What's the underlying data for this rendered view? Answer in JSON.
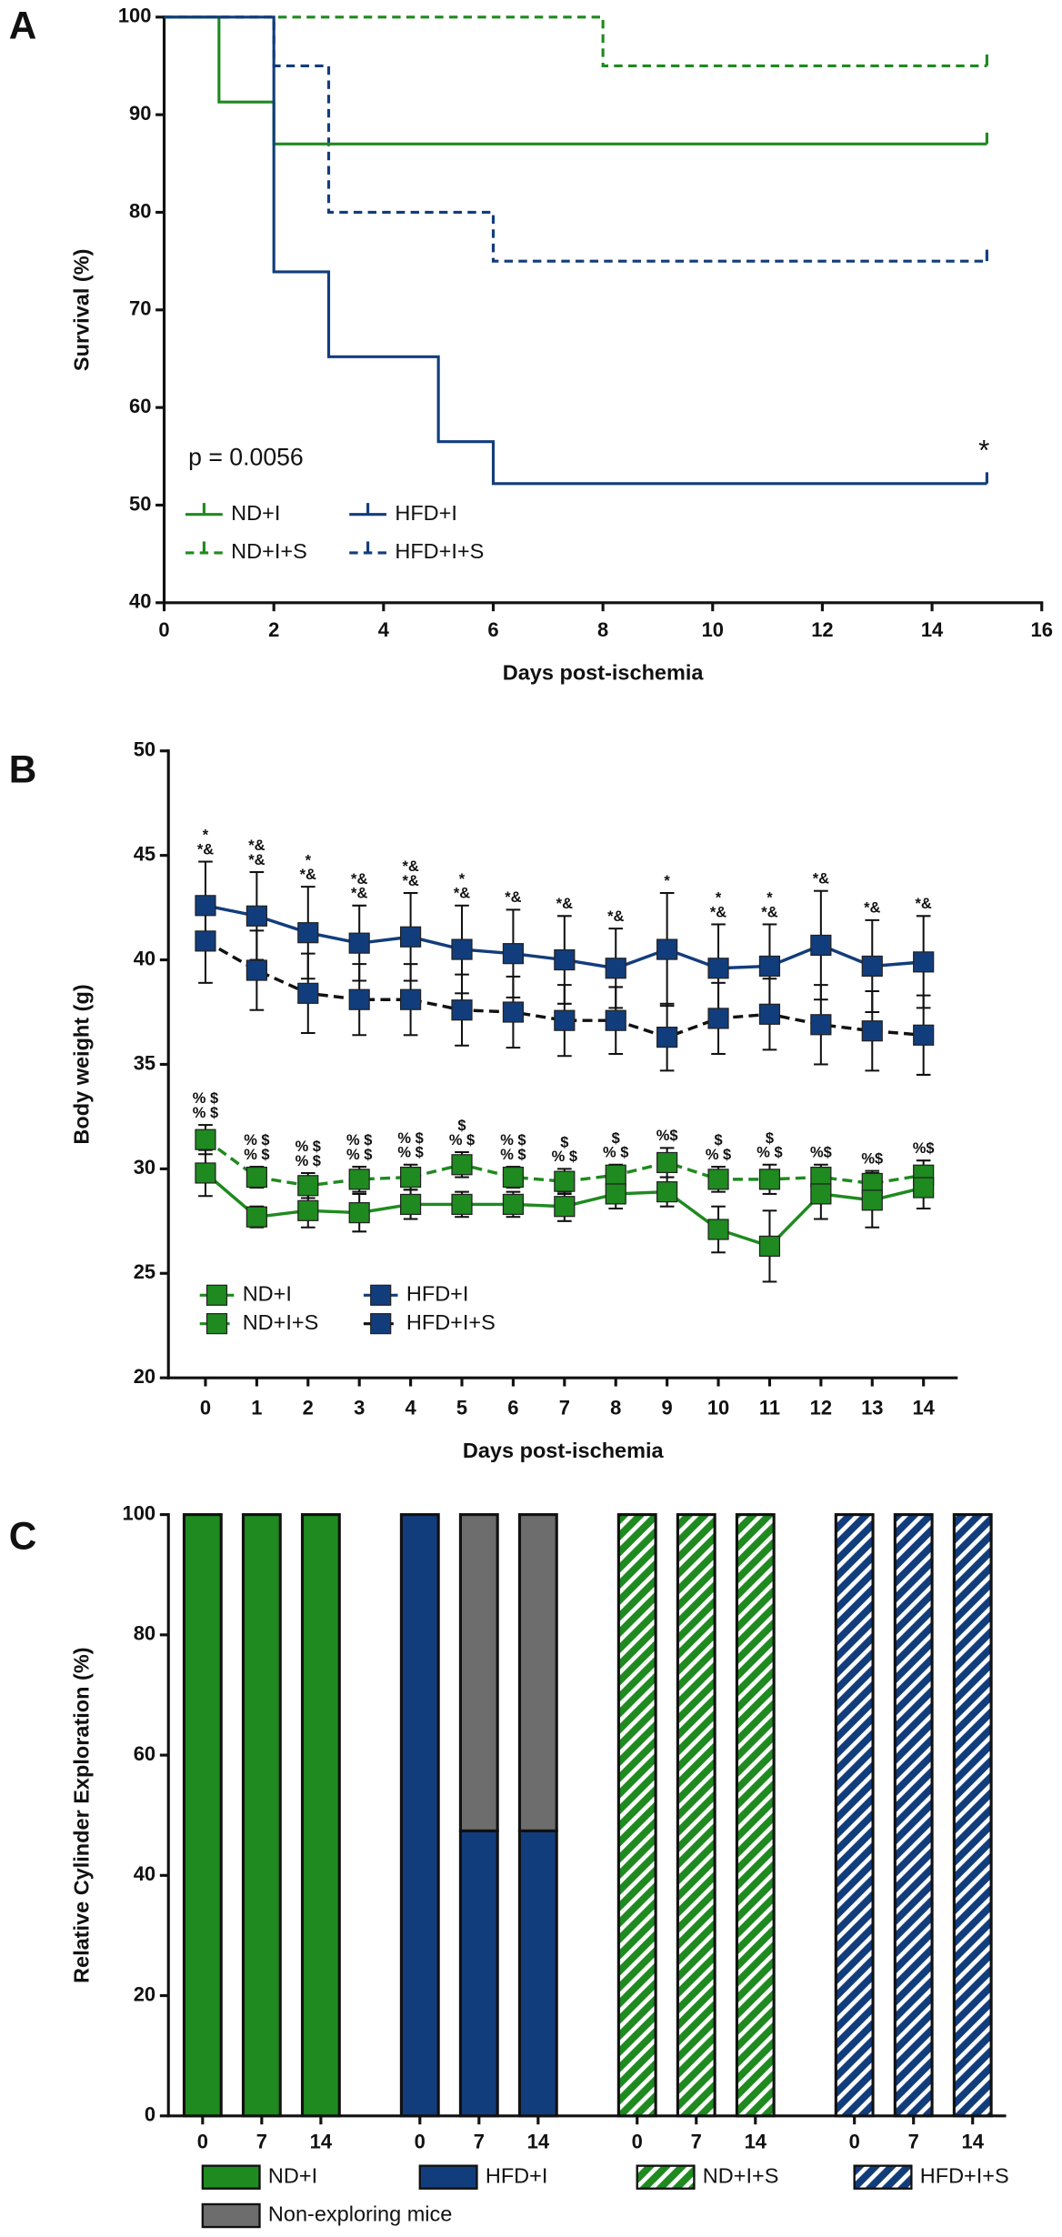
{
  "chart_data": [
    {
      "type": "step",
      "panel_label": "A",
      "ylabel": "Survival (%)",
      "xlabel": "Days post-ischemia",
      "xlim": [
        0,
        16
      ],
      "xticks": [
        0,
        2,
        4,
        6,
        8,
        10,
        12,
        14,
        16
      ],
      "ylim": [
        40,
        100
      ],
      "yticks": [
        40,
        50,
        60,
        70,
        80,
        90,
        100
      ],
      "p_value_text": "p = 0.0056",
      "series": [
        {
          "name": "ND+I",
          "color": "#1f8a1f",
          "dashed": false,
          "x": [
            0,
            1,
            2,
            15
          ],
          "values": [
            100,
            91.3,
            87,
            87
          ]
        },
        {
          "name": "HFD+I",
          "color": "#123d7c",
          "dashed": false,
          "x": [
            0,
            2,
            3,
            5,
            6,
            15
          ],
          "values": [
            100,
            73.9,
            65.2,
            56.5,
            52.2,
            52.2
          ],
          "annotation": "*"
        },
        {
          "name": "ND+I+S",
          "color": "#1f8a1f",
          "dashed": true,
          "x": [
            0,
            8,
            15
          ],
          "values": [
            100,
            95,
            95
          ]
        },
        {
          "name": "HFD+I+S",
          "color": "#123d7c",
          "dashed": true,
          "x": [
            0,
            2,
            3,
            6,
            15
          ],
          "values": [
            100,
            95,
            80,
            75,
            75
          ]
        }
      ]
    },
    {
      "type": "line",
      "panel_label": "B",
      "ylabel": "Body weight (g)",
      "xlabel": "Days post-ischemia",
      "categories": [
        "0",
        "1",
        "2",
        "3",
        "4",
        "5",
        "6",
        "7",
        "8",
        "9",
        "10",
        "11",
        "12",
        "13",
        "14"
      ],
      "ylim": [
        20,
        50
      ],
      "yticks": [
        20,
        25,
        30,
        35,
        40,
        45,
        50
      ],
      "series": [
        {
          "name": "ND+I",
          "color": "#1f8a1f",
          "line_color": "#1f8a1f",
          "dashed": false,
          "values": [
            29.8,
            27.7,
            28.0,
            27.9,
            28.3,
            28.3,
            28.3,
            28.2,
            28.8,
            28.9,
            27.1,
            26.3,
            28.8,
            28.5,
            29.1
          ],
          "errors": [
            1.1,
            0.5,
            0.8,
            0.9,
            0.7,
            0.6,
            0.6,
            0.7,
            0.7,
            0.7,
            1.1,
            1.7,
            1.2,
            1.3,
            1.0
          ]
        },
        {
          "name": "HFD+I",
          "color": "#123d7c",
          "line_color": "#123d7c",
          "dashed": false,
          "values": [
            42.6,
            42.1,
            41.3,
            40.8,
            41.1,
            40.5,
            40.3,
            40.0,
            39.6,
            40.5,
            39.6,
            39.7,
            40.7,
            39.7,
            39.9
          ],
          "errors": [
            2.1,
            2.1,
            2.2,
            1.8,
            2.1,
            2.1,
            2.1,
            2.1,
            1.9,
            2.7,
            2.1,
            2.0,
            2.6,
            2.2,
            2.2
          ],
          "significance": [
            [
              "*",
              "*&"
            ],
            [
              "*&",
              "*&"
            ],
            [
              "*",
              "*&"
            ],
            [
              "*&",
              "*&"
            ],
            [
              "*&",
              "*&"
            ],
            [
              "*",
              "*&"
            ],
            [
              "*&"
            ],
            [
              "*&"
            ],
            [
              "*&"
            ],
            [
              "*"
            ],
            [
              "*",
              "*&"
            ],
            [
              "*",
              "*&"
            ],
            [
              "*&"
            ],
            [
              "*&"
            ],
            [
              "*&"
            ]
          ]
        },
        {
          "name": "ND+I+S",
          "color": "#1f8a1f",
          "line_color": "#1f8a1f",
          "dashed": true,
          "values": [
            31.4,
            29.6,
            29.2,
            29.5,
            29.6,
            30.2,
            29.6,
            29.4,
            29.7,
            30.3,
            29.5,
            29.5,
            29.6,
            29.3,
            29.7
          ],
          "errors": [
            0.7,
            0.5,
            0.6,
            0.6,
            0.6,
            0.6,
            0.5,
            0.6,
            0.5,
            0.7,
            0.6,
            0.7,
            0.6,
            0.6,
            0.7
          ],
          "significance": [
            [
              "% $",
              "% $"
            ],
            [
              "% $",
              "% $"
            ],
            [
              "% $",
              "% $"
            ],
            [
              "% $",
              "% $"
            ],
            [
              "% $",
              "% $"
            ],
            [
              "$",
              "% $"
            ],
            [
              "% $",
              "% $"
            ],
            [
              "$",
              "% $"
            ],
            [
              "$",
              "% $"
            ],
            [
              "%$"
            ],
            [
              "$",
              "% $"
            ],
            [
              "$",
              "% $"
            ],
            [
              "%$"
            ],
            [
              "%$"
            ],
            [
              "%$"
            ]
          ]
        },
        {
          "name": "HFD+I+S",
          "color": "#123d7c",
          "line_color": "#111111",
          "dashed": true,
          "values": [
            40.9,
            39.5,
            38.4,
            38.1,
            38.1,
            37.6,
            37.5,
            37.1,
            37.1,
            36.3,
            37.2,
            37.4,
            36.9,
            36.6,
            36.4
          ],
          "errors": [
            2.0,
            1.9,
            1.9,
            1.7,
            1.7,
            1.7,
            1.7,
            1.7,
            1.6,
            1.6,
            1.7,
            1.7,
            1.9,
            1.9,
            1.9
          ]
        }
      ]
    },
    {
      "type": "stacked_bar",
      "panel_label": "C",
      "ylabel": "Relative Cylinder Exploration (%)",
      "categories": [
        "0",
        "7",
        "14"
      ],
      "ylim": [
        0,
        100
      ],
      "yticks": [
        0,
        20,
        40,
        60,
        80,
        100
      ],
      "groups": [
        {
          "name": "ND+I",
          "color": "#1f8a1f",
          "hatched": false,
          "values": [
            100,
            100,
            100
          ],
          "non_exploring": [
            0,
            0,
            0
          ]
        },
        {
          "name": "HFD+I",
          "color": "#123d7c",
          "hatched": false,
          "values": [
            100,
            47.4,
            47.4
          ],
          "non_exploring": [
            0,
            52.6,
            52.6
          ]
        },
        {
          "name": "ND+I+S",
          "color": "#1f8a1f",
          "hatched": true,
          "values": [
            100,
            100,
            100
          ],
          "non_exploring": [
            0,
            0,
            0
          ]
        },
        {
          "name": "HFD+I+S",
          "color": "#123d7c",
          "hatched": true,
          "values": [
            100,
            100,
            100
          ],
          "non_exploring": [
            0,
            0,
            0
          ]
        }
      ],
      "stack_name": "Non-exploring mice",
      "stack_color": "#6d6d6d"
    }
  ]
}
